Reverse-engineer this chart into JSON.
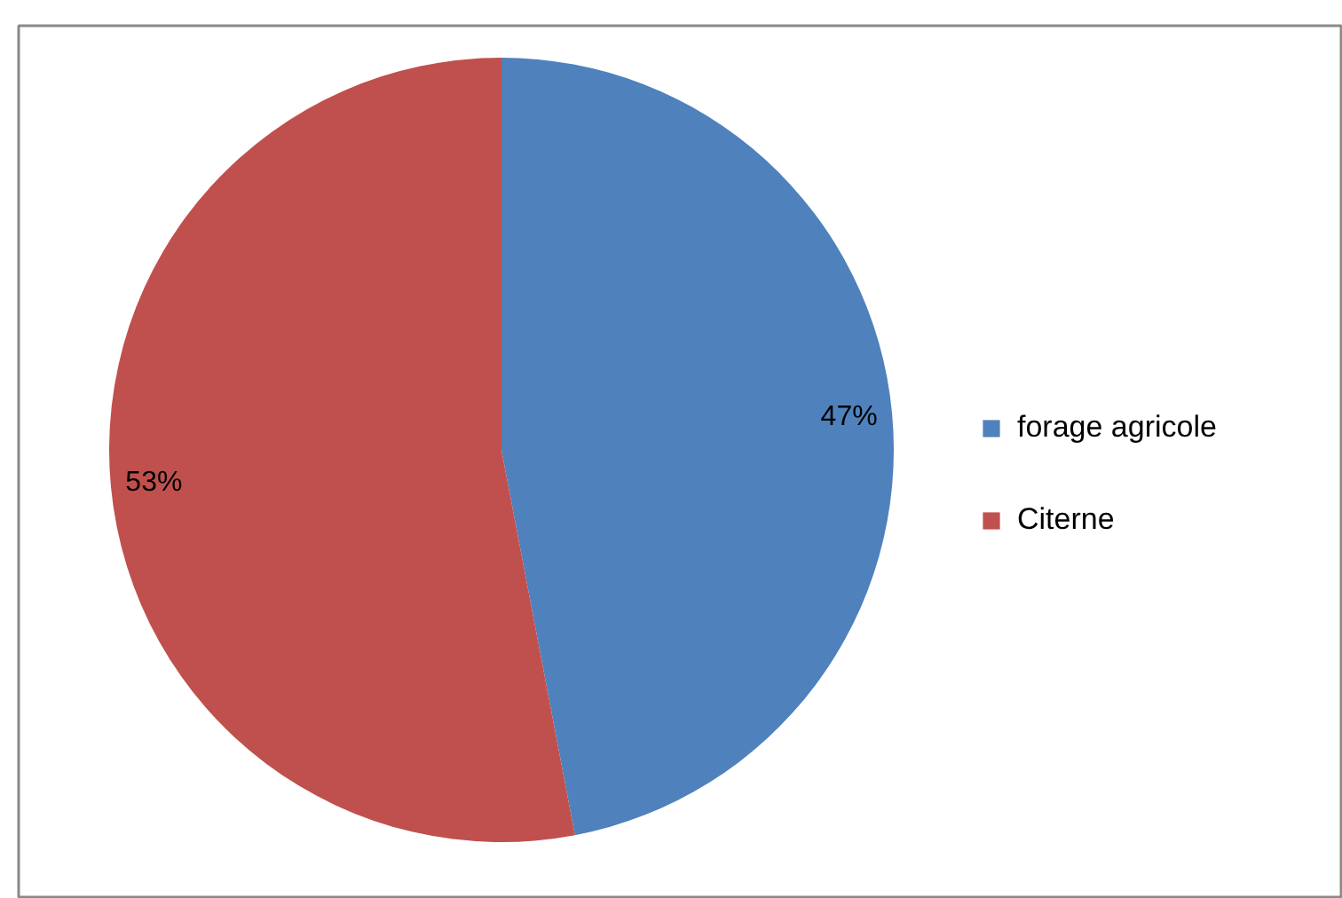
{
  "chart_data": {
    "type": "pie",
    "categories": [
      "forage agricole",
      "Citerne"
    ],
    "values": [
      47,
      53
    ],
    "colors": [
      "#4f81bd",
      "#c0504d"
    ],
    "value_labels": [
      "47%",
      "53%"
    ],
    "legend": "right"
  }
}
